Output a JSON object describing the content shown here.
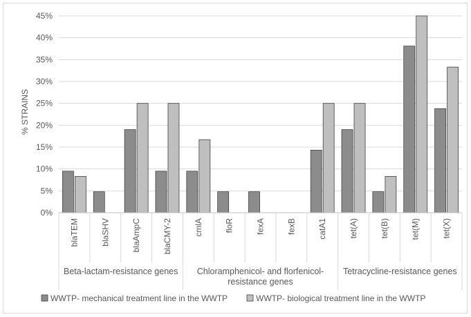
{
  "chart_data": {
    "type": "bar",
    "ylabel": "% STRAINS",
    "ylim": [
      0,
      45
    ],
    "yticks": [
      "0%",
      "5%",
      "10%",
      "15%",
      "20%",
      "25%",
      "30%",
      "35%",
      "40%",
      "45%"
    ],
    "ytick_values": [
      0,
      5,
      10,
      15,
      20,
      25,
      30,
      35,
      40,
      45
    ],
    "grid": true,
    "legend_position": "bottom",
    "categories": [
      "blaTEM",
      "blaSHV",
      "blaAmpC",
      "blaCMY-2",
      "cmlA",
      "floR",
      "fexA",
      "fexB",
      "catA1",
      "tet(A)",
      "tet(B)",
      "tet(M)",
      "tet(X)"
    ],
    "groups": [
      {
        "lines": [
          "Beta-lactam-resistance genes"
        ],
        "start": 0,
        "end": 3
      },
      {
        "lines": [
          "Chloramphenicol- and florfenicol-",
          "resistance genes"
        ],
        "start": 4,
        "end": 8
      },
      {
        "lines": [
          "Tetracycline-resistance genes"
        ],
        "start": 9,
        "end": 12
      }
    ],
    "series": [
      {
        "name": "WWTP- mechanical treatment line in the WWTP",
        "color": "#8c8c8c",
        "values": [
          9.5,
          4.8,
          19.0,
          9.5,
          9.5,
          4.8,
          4.8,
          0,
          14.3,
          19.0,
          4.8,
          38.1,
          23.8
        ]
      },
      {
        "name": "WWTP- biological treatment line in the WWTP",
        "color": "#bfbfbf",
        "values": [
          8.3,
          0,
          25.0,
          25.0,
          16.7,
          0,
          0,
          0,
          25.0,
          25.0,
          8.3,
          45.0,
          33.3
        ]
      }
    ]
  }
}
